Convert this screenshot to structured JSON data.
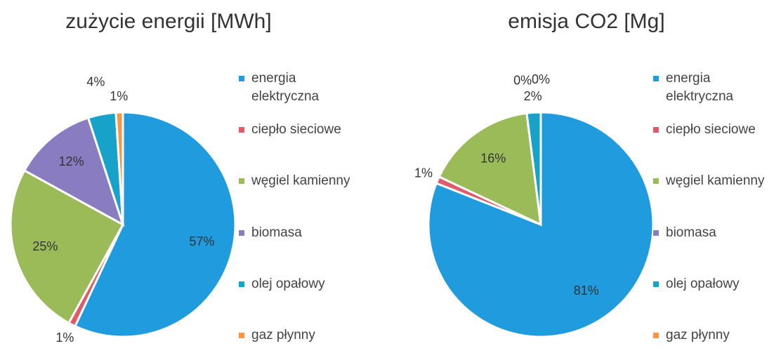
{
  "chart_data": [
    {
      "type": "pie",
      "title": "zużycie energii [MWh]",
      "categories": [
        "energia elektryczna",
        "ciepło sieciowe",
        "węgiel kamienny",
        "biomasa",
        "olej opałowy",
        "gaz płynny"
      ],
      "values": [
        57,
        1,
        25,
        12,
        4,
        1
      ],
      "value_labels": [
        "57%",
        "1%",
        "25%",
        "12%",
        "4%",
        "1%"
      ],
      "colors": [
        "#1f9bde",
        "#e05a6a",
        "#9bbb59",
        "#8a7cc0",
        "#17a2c9",
        "#f79646"
      ]
    },
    {
      "type": "pie",
      "title": "emisja CO2 [Mg]",
      "categories": [
        "energia elektryczna",
        "ciepło sieciowe",
        "węgiel kamienny",
        "biomasa",
        "olej opałowy",
        "gaz płynny"
      ],
      "values": [
        81,
        1,
        16,
        0,
        2,
        0
      ],
      "value_labels": [
        "81%",
        "1%",
        "16%",
        "0%",
        "2%",
        "0%"
      ],
      "colors": [
        "#1f9bde",
        "#e05a6a",
        "#9bbb59",
        "#8a7cc0",
        "#17a2c9",
        "#f79646"
      ]
    }
  ]
}
